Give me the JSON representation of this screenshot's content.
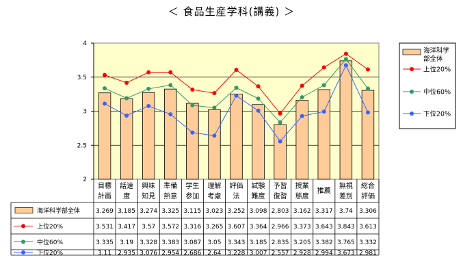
{
  "title": "＜ 食品生産学科(講義) ＞",
  "chart_data": {
    "type": "bar+line",
    "title": "＜ 食品生産学科(講義) ＞",
    "ylim": [
      2,
      4
    ],
    "yticks": [
      "2",
      "2.5",
      "3",
      "3.5",
      "4"
    ],
    "yticks_values": [
      2,
      2.5,
      3,
      3.5,
      4
    ],
    "grid": true,
    "legend_position": "right",
    "categories": [
      [
        "目標",
        "計画"
      ],
      [
        "話速",
        "度"
      ],
      [
        "興味",
        "知見"
      ],
      [
        "準備",
        "熱意"
      ],
      [
        "学生",
        "参加"
      ],
      [
        "理解",
        "考慮"
      ],
      [
        "評価",
        "法"
      ],
      [
        "試験",
        "難度"
      ],
      [
        "予習",
        "復習"
      ],
      [
        "授業",
        "態度"
      ],
      [
        "推薦"
      ],
      [
        "無視",
        "差別"
      ],
      [
        "総合",
        "評価"
      ]
    ],
    "series": [
      {
        "name": "海洋科学部全体",
        "legend_lines": [
          "海洋科学",
          "部全体"
        ],
        "type": "bar",
        "color": "#FFCC99",
        "values": [
          3.269,
          3.185,
          3.274,
          3.325,
          3.115,
          3.023,
          3.252,
          3.098,
          2.803,
          3.162,
          3.317,
          3.74,
          3.306
        ],
        "labels": [
          "3.269",
          "3.185",
          "3.274",
          "3.325",
          "3.115",
          "3.023",
          "3.252",
          "3.098",
          "2.803",
          "3.162",
          "3.317",
          "3.74",
          "3.306"
        ]
      },
      {
        "name": "上位20%",
        "type": "line",
        "color": "#FF0000",
        "values": [
          3.531,
          3.417,
          3.57,
          3.572,
          3.316,
          3.265,
          3.607,
          3.364,
          2.966,
          3.373,
          3.643,
          3.843,
          3.613
        ],
        "labels": [
          "3.531",
          "3.417",
          "3.57",
          "3.572",
          "3.316",
          "3.265",
          "3.607",
          "3.364",
          "2.966",
          "3.373",
          "3.643",
          "3.843",
          "3.613"
        ]
      },
      {
        "name": "中位60%",
        "type": "line",
        "color": "#339966",
        "values": [
          3.335,
          3.19,
          3.328,
          3.383,
          3.087,
          3.05,
          3.343,
          3.185,
          2.835,
          3.205,
          3.382,
          3.765,
          3.332
        ],
        "labels": [
          "3.335",
          "3.19",
          "3.328",
          "3.383",
          "3.087",
          "3.05",
          "3.343",
          "3.185",
          "2.835",
          "3.205",
          "3.382",
          "3.765",
          "3.332"
        ]
      },
      {
        "name": "下位20%",
        "type": "line",
        "color": "#3366FF",
        "values": [
          3.11,
          2.935,
          3.076,
          2.954,
          2.686,
          2.64,
          3.228,
          3.007,
          2.557,
          2.928,
          2.994,
          3.673,
          2.981
        ],
        "labels": [
          "3.11",
          "2.935",
          "3.076",
          "2.954",
          "2.686",
          "2.64",
          "3.228",
          "3.007",
          "2.557",
          "2.928",
          "2.994",
          "3.673",
          "2.981"
        ]
      }
    ],
    "colors": {
      "plot_background": "#FFFFCC",
      "bar_border": "#000000",
      "gridline": "#000000"
    }
  }
}
